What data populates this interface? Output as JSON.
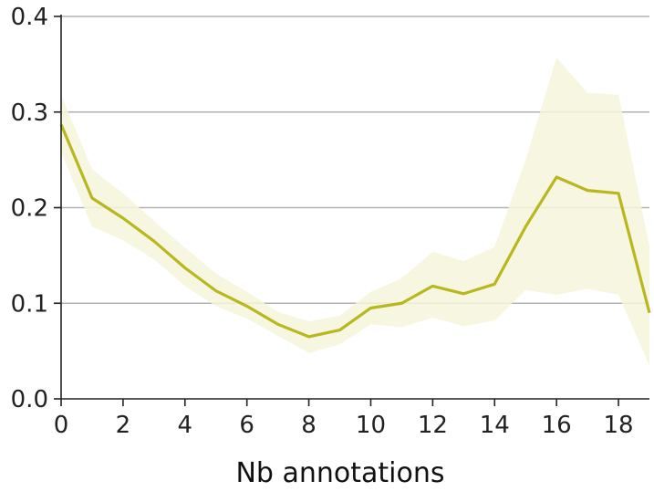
{
  "chart_data": {
    "type": "line",
    "title": "",
    "xlabel": "Nb annotations",
    "ylabel": "",
    "xlim": [
      0,
      19
    ],
    "ylim": [
      0,
      0.4
    ],
    "grid": "horizontal",
    "x_ticks": [
      0,
      2,
      4,
      6,
      8,
      10,
      12,
      14,
      16,
      18
    ],
    "x_tick_labels": [
      "0",
      "2",
      "4",
      "6",
      "8",
      "10",
      "12",
      "14",
      "16",
      "18"
    ],
    "y_ticks": [
      0,
      0.1,
      0.2,
      0.3,
      0.4
    ],
    "y_tick_labels": [
      "0.0",
      "0.1",
      "0.2",
      "0.3",
      "0.4"
    ],
    "line_color": "#b8b81e",
    "band_color": "#f5f5dc",
    "series": [
      {
        "x": [
          0,
          1,
          2,
          3,
          4,
          5,
          6,
          7,
          8,
          9,
          10,
          11,
          12,
          13,
          14,
          15,
          16,
          17,
          18,
          19
        ],
        "y": [
          0.287,
          0.21,
          0.189,
          0.165,
          0.137,
          0.113,
          0.097,
          0.078,
          0.065,
          0.072,
          0.095,
          0.1,
          0.118,
          0.11,
          0.12,
          0.18,
          0.232,
          0.218,
          0.215,
          0.09
        ],
        "lower": [
          0.258,
          0.18,
          0.166,
          0.146,
          0.118,
          0.097,
          0.084,
          0.066,
          0.048,
          0.057,
          0.078,
          0.075,
          0.085,
          0.076,
          0.082,
          0.114,
          0.109,
          0.115,
          0.109,
          0.035
        ],
        "upper": [
          0.318,
          0.24,
          0.215,
          0.186,
          0.158,
          0.131,
          0.112,
          0.091,
          0.081,
          0.087,
          0.112,
          0.126,
          0.154,
          0.144,
          0.159,
          0.25,
          0.357,
          0.32,
          0.318,
          0.16
        ]
      }
    ]
  }
}
